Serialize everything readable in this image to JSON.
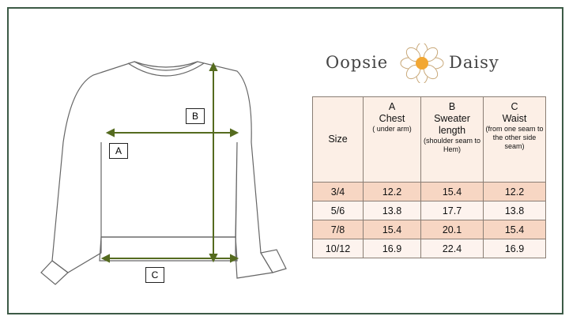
{
  "brand": {
    "name_left": "Oopsie",
    "name_right": "Daisy"
  },
  "diagram": {
    "labels": {
      "a": "A",
      "b": "B",
      "c": "C"
    },
    "arrow_color": "#556b1f"
  },
  "table": {
    "headers": [
      {
        "letter": "",
        "title": "Size",
        "note": ""
      },
      {
        "letter": "A",
        "title": "Chest",
        "note": "( under arm)"
      },
      {
        "letter": "B",
        "title": "Sweater length",
        "note": "(shoulder seam to Hem)"
      },
      {
        "letter": "C",
        "title": "Waist",
        "note": "(from one seam to the other side seam)"
      }
    ],
    "rows": [
      [
        "3/4",
        "12.2",
        "15.4",
        "12.2"
      ],
      [
        "5/6",
        "13.8",
        "17.7",
        "13.8"
      ],
      [
        "7/8",
        "15.4",
        "20.1",
        "15.4"
      ],
      [
        "10/12",
        "16.9",
        "22.4",
        "16.9"
      ]
    ]
  }
}
